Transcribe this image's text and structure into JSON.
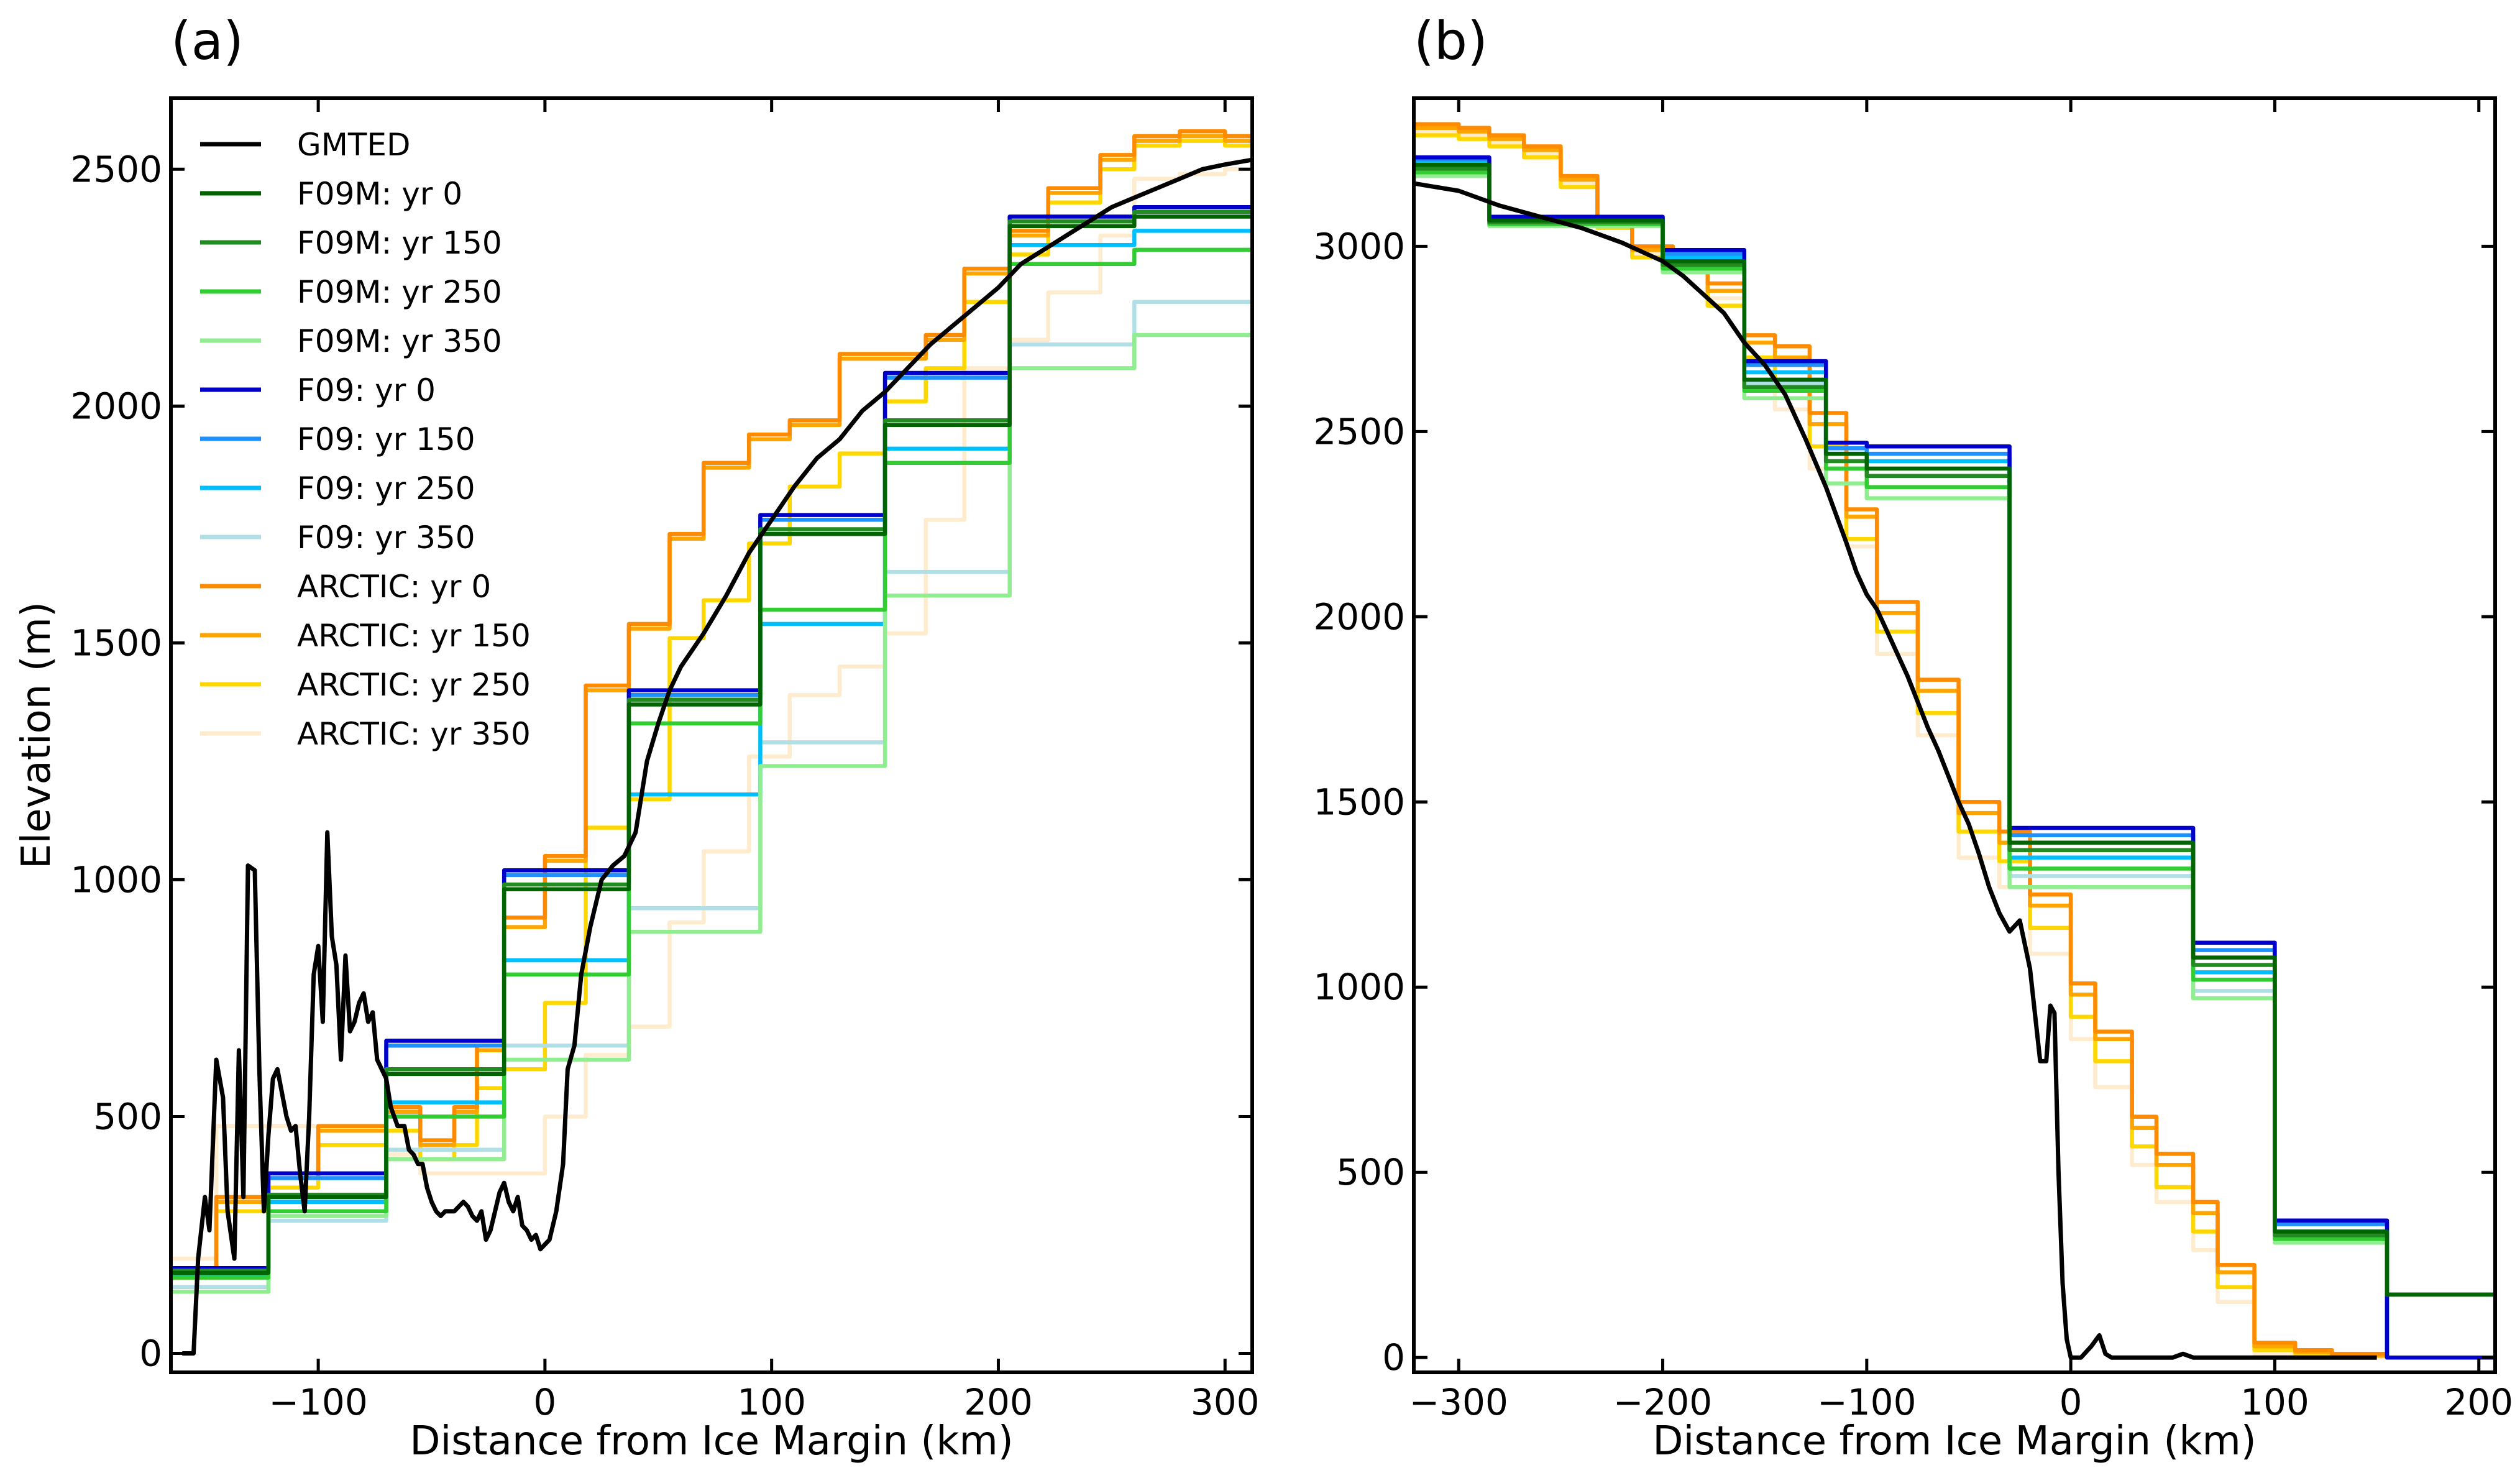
{
  "colors": {
    "GMTED": "#000000",
    "F09M: yr 0": "#006400",
    "F09M: yr 150": "#228B22",
    "F09M: yr 250": "#32CD32",
    "F09M: yr 350": "#90EE90",
    "F09: yr 0": "#0000CD",
    "F09: yr 150": "#1E90FF",
    "F09: yr 250": "#00BFFF",
    "F09: yr 350": "#B0E0E6",
    "ARCTIC: yr 0": "#FF8C00",
    "ARCTIC: yr 150": "#FFA500",
    "ARCTIC: yr 250": "#FFD700",
    "ARCTIC: yr 350": "#FFEBCD"
  },
  "chart_data": [
    {
      "panel_label": "(a)",
      "type": "line",
      "xlabel": "Distance from Ice Margin (km)",
      "ylabel": "Elevation (m)",
      "xlim": [
        -165,
        312
      ],
      "ylim": [
        -40,
        2650
      ],
      "xticks": [
        -100,
        0,
        100,
        200,
        300
      ],
      "yticks": [
        0,
        500,
        1000,
        1500,
        2000,
        2500
      ],
      "legend_position": "upper-left",
      "legend": [
        "GMTED",
        "F09M: yr 0",
        "F09M: yr 150",
        "F09M: yr 250",
        "F09M: yr 350",
        "F09: yr 0",
        "F09: yr 150",
        "F09: yr 250",
        "F09: yr 350",
        "ARCTIC: yr 0",
        "ARCTIC: yr 150",
        "ARCTIC: yr 250",
        "ARCTIC: yr 350"
      ],
      "step_edges_km": {
        "F09": [
          -165,
          -122,
          -70,
          -18,
          37,
          95,
          150,
          205,
          260,
          312
        ],
        "ARCTIC": [
          -165,
          -145,
          -122,
          -100,
          -70,
          -55,
          -40,
          -30,
          -18,
          0,
          18,
          37,
          55,
          70,
          90,
          108,
          130,
          150,
          168,
          185,
          205,
          222,
          245,
          260,
          280,
          300,
          312
        ]
      },
      "series": [
        {
          "name": "GMTED",
          "style": "line",
          "x": [
            -160,
            -155,
            -153,
            -150,
            -148,
            -145,
            -142,
            -140,
            -137,
            -135,
            -133,
            -131,
            -128,
            -126,
            -124,
            -122,
            -120,
            -118,
            -116,
            -114,
            -112,
            -110,
            -108,
            -106,
            -104,
            -102,
            -100,
            -98,
            -96,
            -94,
            -92,
            -90,
            -88,
            -86,
            -84,
            -82,
            -80,
            -78,
            -76,
            -74,
            -72,
            -70,
            -68,
            -65,
            -62,
            -60,
            -58,
            -56,
            -54,
            -52,
            -50,
            -48,
            -46,
            -44,
            -42,
            -40,
            -38,
            -36,
            -34,
            -32,
            -30,
            -28,
            -26,
            -24,
            -22,
            -20,
            -18,
            -16,
            -14,
            -12,
            -10,
            -8,
            -6,
            -4,
            -2,
            0,
            2,
            5,
            8,
            10,
            13,
            16,
            20,
            25,
            30,
            35,
            40,
            45,
            50,
            55,
            60,
            70,
            80,
            90,
            100,
            110,
            120,
            130,
            140,
            150,
            160,
            170,
            180,
            190,
            200,
            210,
            220,
            230,
            240,
            250,
            260,
            270,
            280,
            290,
            300,
            312
          ],
          "y": [
            0,
            0,
            200,
            330,
            260,
            620,
            540,
            300,
            200,
            640,
            330,
            1030,
            1020,
            600,
            300,
            460,
            580,
            600,
            550,
            500,
            470,
            480,
            380,
            300,
            500,
            800,
            860,
            700,
            1100,
            880,
            820,
            620,
            840,
            680,
            700,
            740,
            760,
            700,
            720,
            620,
            600,
            580,
            520,
            480,
            480,
            430,
            420,
            400,
            400,
            350,
            320,
            300,
            290,
            300,
            300,
            300,
            310,
            320,
            310,
            290,
            280,
            300,
            240,
            260,
            300,
            340,
            360,
            320,
            300,
            330,
            270,
            260,
            240,
            250,
            220,
            230,
            240,
            300,
            400,
            600,
            650,
            800,
            900,
            1000,
            1030,
            1050,
            1100,
            1250,
            1330,
            1400,
            1450,
            1520,
            1600,
            1690,
            1760,
            1830,
            1890,
            1930,
            1990,
            2030,
            2080,
            2130,
            2170,
            2210,
            2250,
            2300,
            2330,
            2360,
            2390,
            2420,
            2440,
            2460,
            2480,
            2500,
            2510,
            2520
          ]
        },
        {
          "name": "F09M: yr 0",
          "style": "step",
          "values": [
            170,
            330,
            590,
            980,
            1370,
            1730,
            1960,
            2380,
            2400
          ]
        },
        {
          "name": "F09M: yr 150",
          "style": "step",
          "values": [
            175,
            335,
            600,
            990,
            1380,
            1740,
            1970,
            2390,
            2410
          ]
        },
        {
          "name": "F09M: yr 250",
          "style": "step",
          "values": [
            160,
            300,
            500,
            800,
            1330,
            1570,
            1880,
            2300,
            2330
          ]
        },
        {
          "name": "F09M: yr 350",
          "style": "step",
          "values": [
            130,
            290,
            410,
            620,
            890,
            1240,
            1600,
            2080,
            2150
          ]
        },
        {
          "name": "F09: yr 0",
          "style": "step",
          "values": [
            180,
            380,
            660,
            1020,
            1400,
            1770,
            2070,
            2400,
            2420
          ]
        },
        {
          "name": "F09: yr 150",
          "style": "step",
          "values": [
            175,
            370,
            650,
            1010,
            1390,
            1760,
            2060,
            2390,
            2410
          ]
        },
        {
          "name": "F09: yr 250",
          "style": "step",
          "values": [
            165,
            320,
            530,
            830,
            1180,
            1540,
            1910,
            2340,
            2370
          ]
        },
        {
          "name": "F09: yr 350",
          "style": "step",
          "values": [
            140,
            280,
            430,
            650,
            940,
            1290,
            1650,
            2130,
            2220
          ]
        },
        {
          "name": "ARCTIC: yr 0",
          "style": "step",
          "values": [
            180,
            330,
            380,
            480,
            520,
            450,
            520,
            650,
            920,
            1050,
            1410,
            1540,
            1730,
            1880,
            1940,
            1970,
            2110,
            2110,
            2150,
            2290,
            2370,
            2460,
            2530,
            2570,
            2580,
            2570
          ]
        },
        {
          "name": "ARCTIC: yr 150",
          "style": "step",
          "values": [
            175,
            320,
            370,
            470,
            510,
            440,
            510,
            640,
            900,
            1040,
            1400,
            1530,
            1720,
            1870,
            1930,
            1960,
            2100,
            2100,
            2140,
            2280,
            2360,
            2450,
            2520,
            2560,
            2570,
            2560
          ]
        },
        {
          "name": "ARCTIC: yr 250",
          "style": "step",
          "values": [
            160,
            300,
            350,
            440,
            470,
            410,
            440,
            560,
            600,
            740,
            1110,
            1170,
            1510,
            1590,
            1710,
            1830,
            1900,
            2010,
            2080,
            2220,
            2320,
            2430,
            2500,
            2550,
            2560,
            2550
          ]
        },
        {
          "name": "ARCTIC: yr 350",
          "style": "step",
          "values": [
            200,
            480,
            480,
            480,
            420,
            380,
            380,
            380,
            380,
            500,
            630,
            690,
            910,
            1060,
            1260,
            1390,
            1450,
            1520,
            1760,
            2080,
            2140,
            2240,
            2360,
            2480,
            2490,
            2500
          ]
        }
      ]
    },
    {
      "panel_label": "(b)",
      "type": "line",
      "xlabel": "Distance from Ice Margin (km)",
      "ylabel": "",
      "xlim": [
        -322,
        208
      ],
      "ylim": [
        -40,
        3400
      ],
      "xticks": [
        -300,
        -200,
        -100,
        0,
        100,
        200
      ],
      "yticks": [
        0,
        500,
        1000,
        1500,
        2000,
        2500,
        3000
      ],
      "step_edges_km": {
        "F09": [
          -322,
          -285,
          -200,
          -160,
          -120,
          -100,
          -30,
          0,
          60,
          100,
          155,
          208
        ],
        "ARCTIC": [
          -322,
          -300,
          -285,
          -268,
          -250,
          -232,
          -215,
          -195,
          -178,
          -160,
          -145,
          -128,
          -110,
          -95,
          -75,
          -55,
          -35,
          -20,
          0,
          12,
          30,
          42,
          60,
          72,
          90,
          110,
          128,
          155,
          208
        ]
      },
      "series": [
        {
          "name": "GMTED",
          "style": "line",
          "x": [
            -322,
            -300,
            -280,
            -260,
            -240,
            -220,
            -200,
            -190,
            -180,
            -170,
            -160,
            -150,
            -140,
            -130,
            -120,
            -110,
            -105,
            -100,
            -95,
            -90,
            -85,
            -80,
            -75,
            -70,
            -65,
            -60,
            -55,
            -50,
            -45,
            -40,
            -35,
            -30,
            -25,
            -20,
            -15,
            -12,
            -10,
            -8,
            -6,
            -4,
            -2,
            0,
            5,
            10,
            14,
            17,
            20,
            30,
            50,
            55,
            60,
            80,
            100,
            120,
            150
          ],
          "y": [
            3170,
            3150,
            3110,
            3080,
            3050,
            3010,
            2960,
            2920,
            2870,
            2820,
            2740,
            2680,
            2600,
            2480,
            2350,
            2200,
            2120,
            2060,
            2020,
            1960,
            1900,
            1840,
            1770,
            1700,
            1640,
            1570,
            1500,
            1440,
            1360,
            1270,
            1200,
            1150,
            1180,
            1050,
            800,
            800,
            950,
            930,
            500,
            200,
            50,
            0,
            0,
            30,
            60,
            10,
            0,
            0,
            0,
            10,
            0,
            0,
            0,
            0,
            0
          ]
        },
        {
          "name": "F09M: yr 0",
          "style": "step",
          "values": [
            3220,
            3070,
            2960,
            2640,
            2440,
            2400,
            1390,
            1390,
            1080,
            340,
            170
          ]
        },
        {
          "name": "F09M: yr 150",
          "style": "step",
          "values": [
            3210,
            3065,
            2950,
            2620,
            2420,
            2380,
            1370,
            1370,
            1060,
            330,
            170
          ]
        },
        {
          "name": "F09M: yr 250",
          "style": "step",
          "values": [
            3200,
            3060,
            2940,
            2610,
            2400,
            2350,
            1320,
            1320,
            1020,
            320,
            170
          ]
        },
        {
          "name": "F09M: yr 350",
          "style": "step",
          "values": [
            3190,
            3055,
            2930,
            2590,
            2360,
            2320,
            1270,
            1270,
            970,
            310,
            170
          ]
        },
        {
          "name": "F09: yr 0",
          "style": "step",
          "values": [
            3240,
            3080,
            2990,
            2690,
            2470,
            2460,
            1430,
            1430,
            1120,
            370,
            0
          ]
        },
        {
          "name": "F09: yr 150",
          "style": "step",
          "values": [
            3235,
            3078,
            2980,
            2680,
            2455,
            2440,
            1410,
            1410,
            1100,
            360,
            0
          ]
        },
        {
          "name": "F09: yr 250",
          "style": "step",
          "values": [
            3225,
            3075,
            2970,
            2660,
            2440,
            2420,
            1350,
            1350,
            1040,
            340,
            0
          ]
        },
        {
          "name": "F09: yr 350",
          "style": "step",
          "values": [
            3210,
            3070,
            2960,
            2630,
            2400,
            2380,
            1300,
            1300,
            990,
            320,
            0
          ]
        },
        {
          "name": "ARCTIC: yr 0",
          "style": "step",
          "values": [
            3330,
            3320,
            3300,
            3270,
            3190,
            3080,
            3000,
            2980,
            2900,
            2760,
            2730,
            2550,
            2290,
            2040,
            1830,
            1500,
            1420,
            1250,
            1010,
            880,
            650,
            550,
            420,
            250,
            40,
            20,
            10,
            0
          ]
        },
        {
          "name": "ARCTIC: yr 150",
          "style": "step",
          "values": [
            3320,
            3310,
            3290,
            3260,
            3180,
            3070,
            2990,
            2970,
            2880,
            2740,
            2700,
            2520,
            2270,
            2010,
            1800,
            1470,
            1390,
            1220,
            980,
            860,
            620,
            520,
            390,
            230,
            30,
            15,
            5,
            0
          ]
        },
        {
          "name": "ARCTIC: yr 250",
          "style": "step",
          "values": [
            3300,
            3290,
            3270,
            3240,
            3160,
            3050,
            2970,
            2950,
            2840,
            2700,
            2640,
            2460,
            2210,
            1960,
            1740,
            1420,
            1340,
            1160,
            920,
            800,
            570,
            460,
            340,
            190,
            20,
            10,
            5,
            0
          ]
        },
        {
          "name": "ARCTIC: yr 350",
          "style": "step",
          "values": [
            3310,
            3300,
            3280,
            3250,
            3170,
            3060,
            2980,
            2960,
            2860,
            2700,
            2560,
            2400,
            2190,
            1900,
            1680,
            1350,
            1270,
            1090,
            860,
            730,
            520,
            420,
            290,
            150,
            10,
            5,
            0,
            0
          ]
        }
      ]
    }
  ]
}
